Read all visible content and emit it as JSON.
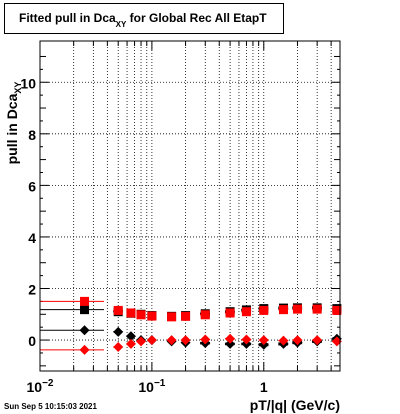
{
  "title": {
    "prefix": "Fitted pull in Dca",
    "subscript": "XY",
    "suffix": " for Global Rec All EtapT"
  },
  "footer": "Sun Sep  5 10:15:03 2021",
  "colors": {
    "black_series": "#000000",
    "red_series": "#ff0000",
    "grid": "#000000"
  },
  "chart_data": {
    "type": "scatter",
    "title": "Fitted pull in Dca_XY for Global Rec All EtapT",
    "xlabel": "pT/|q| (GeV/c)",
    "ylabel": "pull in Dca_XY",
    "x_scale": "log",
    "xlim": [
      0.01,
      4.8
    ],
    "ylim": [
      -1.2,
      11.6
    ],
    "grid": true,
    "x_tick_labels": [
      {
        "value": 0.01,
        "base": "10",
        "exp": "−2"
      },
      {
        "value": 0.1,
        "base": "10",
        "exp": "−1"
      },
      {
        "value": 1,
        "base": "1",
        "exp": ""
      }
    ],
    "y_ticks": [
      0,
      2,
      4,
      6,
      8,
      10
    ],
    "y_tick_labels": [
      "0",
      "2",
      "4",
      "6",
      "8",
      "10"
    ],
    "series": [
      {
        "marker": "square",
        "color": "#000000",
        "x": [
          0.025,
          0.05,
          0.065,
          0.08,
          0.1,
          0.15,
          0.2,
          0.3,
          0.5,
          0.7,
          1.0,
          1.5,
          2.0,
          3.0,
          4.5
        ],
        "y": [
          1.18,
          1.1,
          1.04,
          1.0,
          0.95,
          0.92,
          0.95,
          1.02,
          1.1,
          1.17,
          1.22,
          1.24,
          1.25,
          1.25,
          1.22
        ],
        "xerr": [
          0.012,
          0.005,
          0.005,
          0.005,
          0.006,
          0.01,
          0.015,
          0.03,
          0.05,
          0.07,
          0.1,
          0.15,
          0.2,
          0.3,
          0.4
        ],
        "yerr": [
          0.03,
          0.03,
          0.03,
          0.03,
          0.03,
          0.04,
          0.05,
          0.05,
          0.05,
          0.05,
          0.06,
          0.06,
          0.06,
          0.06,
          0.06
        ]
      },
      {
        "marker": "square",
        "color": "#ff0000",
        "x": [
          0.025,
          0.05,
          0.065,
          0.08,
          0.1,
          0.15,
          0.2,
          0.3,
          0.5,
          0.7,
          1.0,
          1.5,
          2.0,
          3.0,
          4.5
        ],
        "y": [
          1.5,
          1.15,
          1.05,
          0.98,
          0.93,
          0.9,
          0.92,
          0.98,
          1.05,
          1.1,
          1.15,
          1.18,
          1.2,
          1.2,
          1.15
        ],
        "xerr": [
          0.012,
          0.005,
          0.005,
          0.005,
          0.006,
          0.01,
          0.015,
          0.03,
          0.05,
          0.07,
          0.1,
          0.15,
          0.2,
          0.3,
          0.4
        ],
        "yerr": [
          0.02,
          0.02,
          0.02,
          0.02,
          0.02,
          0.02,
          0.02,
          0.02,
          0.02,
          0.02,
          0.02,
          0.02,
          0.02,
          0.02,
          0.02
        ]
      },
      {
        "marker": "diamond",
        "color": "#000000",
        "x": [
          0.025,
          0.05,
          0.065,
          0.08,
          0.1,
          0.15,
          0.2,
          0.3,
          0.5,
          0.7,
          1.0,
          1.5,
          2.0,
          3.0,
          4.5
        ],
        "y": [
          0.38,
          0.32,
          0.15,
          0.0,
          0.0,
          -0.05,
          -0.1,
          -0.12,
          -0.15,
          -0.15,
          -0.18,
          -0.15,
          -0.1,
          -0.05,
          0.05
        ],
        "xerr": [
          0.012,
          0.005,
          0.005,
          0.005,
          0.006,
          0.01,
          0.015,
          0.03,
          0.05,
          0.07,
          0.1,
          0.15,
          0.2,
          0.3,
          0.4
        ],
        "yerr": [
          0.03,
          0.03,
          0.03,
          0.03,
          0.03,
          0.04,
          0.05,
          0.05,
          0.05,
          0.05,
          0.06,
          0.06,
          0.06,
          0.06,
          0.06
        ]
      },
      {
        "marker": "diamond",
        "color": "#ff0000",
        "x": [
          0.025,
          0.05,
          0.065,
          0.08,
          0.1,
          0.15,
          0.2,
          0.3,
          0.5,
          0.7,
          1.0,
          1.5,
          2.0,
          3.0,
          4.5
        ],
        "y": [
          -0.38,
          -0.27,
          -0.15,
          -0.05,
          0.0,
          0.0,
          0.0,
          0.02,
          0.05,
          0.02,
          0.0,
          -0.02,
          0.0,
          0.0,
          -0.05
        ],
        "xerr": [
          0.012,
          0.005,
          0.005,
          0.005,
          0.006,
          0.01,
          0.015,
          0.03,
          0.05,
          0.07,
          0.1,
          0.15,
          0.2,
          0.3,
          0.4
        ],
        "yerr": [
          0.02,
          0.02,
          0.02,
          0.02,
          0.02,
          0.02,
          0.02,
          0.02,
          0.02,
          0.02,
          0.02,
          0.02,
          0.02,
          0.02,
          0.02
        ]
      }
    ]
  }
}
